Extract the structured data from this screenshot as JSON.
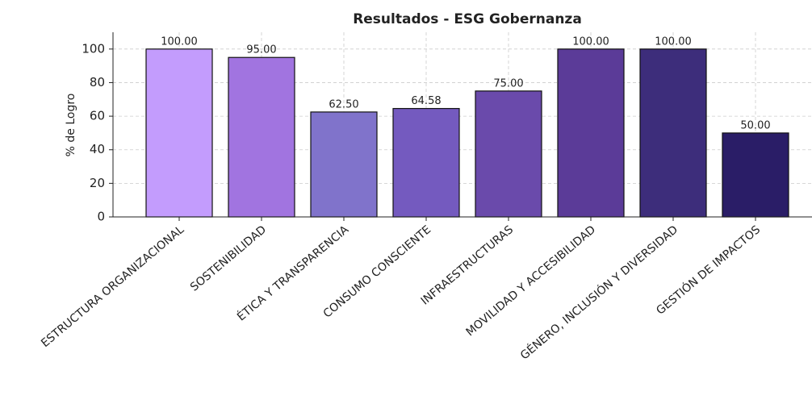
{
  "chart_data": {
    "type": "bar",
    "title": "Resultados - ESG Gobernanza",
    "y_label": "% de Logro",
    "categories": [
      "ESTRUCTURA ORGANIZACIONAL",
      "SOSTENIBILIDAD",
      "ÉTICA Y TRANSPARENCIA",
      "CONSUMO CONSCIENTE",
      "INFRAESTRUCTURAS",
      "MOVILIDAD Y ACCESIBILIDAD",
      "GÉNERO, INCLUSIÓN Y DIVERSIDAD",
      "GESTIÓN DE IMPACTOS"
    ],
    "values": [
      100,
      95,
      62.5,
      64.58,
      75,
      100,
      100,
      50
    ],
    "value_labels": [
      "100.00",
      "95.00",
      "62.50",
      "64.58",
      "75.00",
      "100.00",
      "100.00",
      "50.00"
    ],
    "colors": [
      "#c39cfd",
      "#a174e0",
      "#8073cb",
      "#745abf",
      "#6a4aab",
      "#5b3b98",
      "#3d2d7b",
      "#2a1d67"
    ],
    "ylim": [
      0,
      110
    ],
    "yticks": [
      0,
      20,
      40,
      60,
      80,
      100
    ],
    "grid": true
  }
}
